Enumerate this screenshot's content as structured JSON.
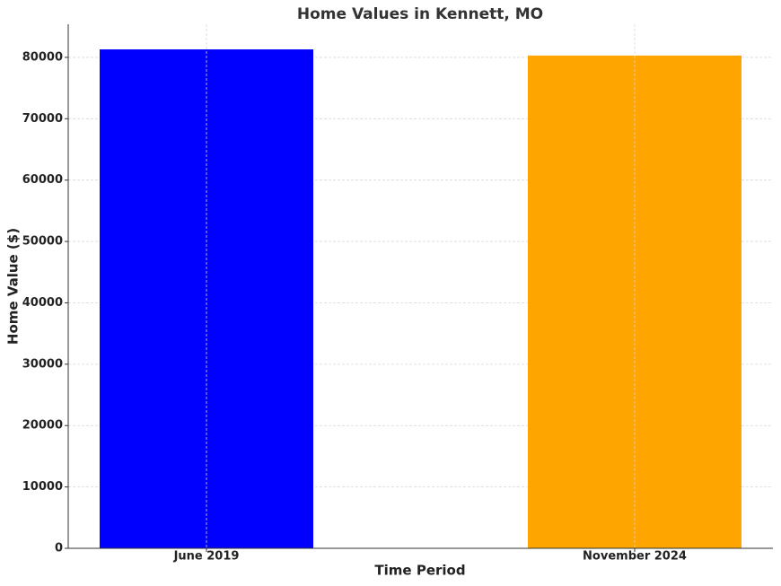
{
  "chart_data": {
    "type": "bar",
    "title": "Home Values in Kennett, MO",
    "x_label": "Time Period",
    "y_label": "Home Value ($)",
    "categories": [
      "June 2019",
      "November 2024"
    ],
    "values": [
      81300,
      80300
    ],
    "colors": [
      "#0000ff",
      "#ffa500"
    ],
    "ylim": [
      0,
      85400
    ],
    "yticks": [
      0,
      10000,
      20000,
      30000,
      40000,
      50000,
      60000,
      70000,
      80000
    ],
    "grid": true
  }
}
